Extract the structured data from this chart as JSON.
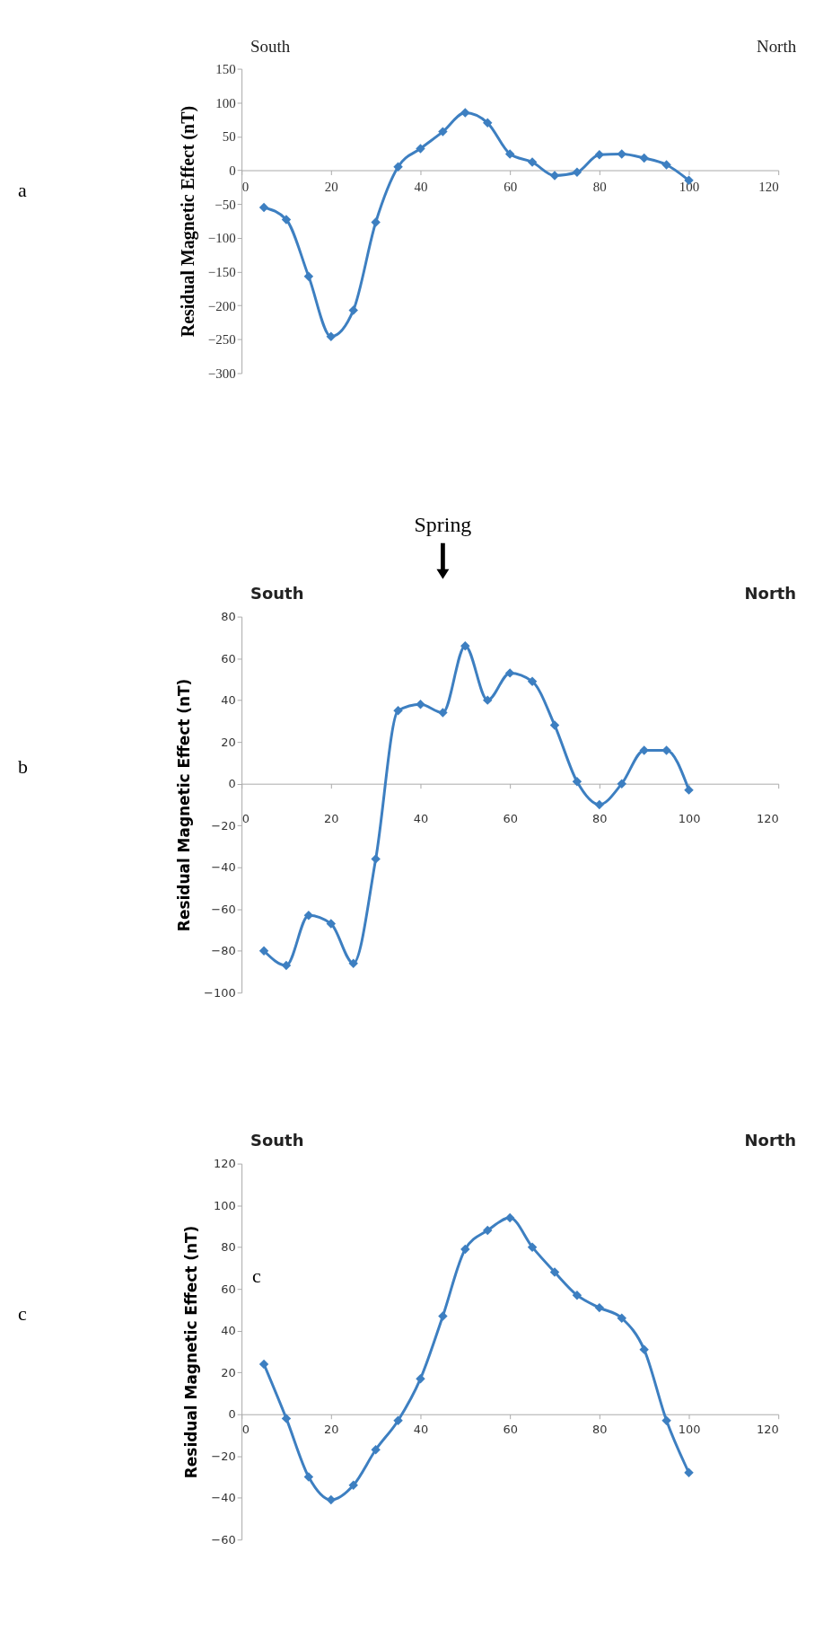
{
  "chart_data": [
    {
      "type": "line",
      "ylabel": "Residual Magnetic Effect (nT)",
      "annotations": [
        "a",
        "South",
        "North"
      ],
      "x": [
        5,
        10,
        15,
        20,
        25,
        30,
        35,
        40,
        45,
        50,
        55,
        60,
        65,
        70,
        75,
        80,
        85,
        90,
        95,
        100
      ],
      "series": [
        {
          "color": "#3d7fc1",
          "values": [
            -55,
            -73,
            -157,
            -246,
            -207,
            -77,
            5,
            32,
            57,
            85,
            70,
            24,
            12,
            -8,
            -3,
            23,
            24,
            18,
            8,
            -15
          ]
        }
      ],
      "xlim": [
        0,
        120
      ],
      "xticks": [
        0,
        20,
        40,
        60,
        80,
        100,
        120
      ],
      "ylim": [
        -300,
        150
      ],
      "yticks": [
        -300,
        -250,
        -200,
        -150,
        -100,
        -50,
        0,
        50,
        100,
        150
      ],
      "grid": false,
      "marker": "diamond",
      "line_style": "solid"
    },
    {
      "type": "line",
      "ylabel": "Residual Magnetic Effect (nT)",
      "annotations": [
        "b",
        "South",
        "North",
        "Spring"
      ],
      "x": [
        5,
        10,
        15,
        20,
        25,
        30,
        35,
        40,
        45,
        50,
        55,
        60,
        65,
        70,
        75,
        80,
        85,
        90,
        95,
        100
      ],
      "series": [
        {
          "color": "#3d7fc1",
          "values": [
            -80,
            -87,
            -63,
            -67,
            -86,
            -36,
            35,
            38,
            34,
            66,
            40,
            53,
            49,
            28,
            1,
            -10,
            0,
            16,
            16,
            -3
          ]
        }
      ],
      "xlim": [
        0,
        120
      ],
      "xticks": [
        0,
        20,
        40,
        60,
        80,
        100,
        120
      ],
      "ylim": [
        -100,
        80
      ],
      "yticks": [
        -100,
        -80,
        -60,
        -40,
        -20,
        0,
        20,
        40,
        60,
        80
      ],
      "grid": false,
      "marker": "diamond",
      "line_style": "solid"
    },
    {
      "type": "line",
      "ylabel": "Residual Magnetic Effect (nT)",
      "annotations": [
        "c",
        "South",
        "North",
        "c"
      ],
      "x": [
        5,
        10,
        15,
        20,
        25,
        30,
        35,
        40,
        45,
        50,
        55,
        60,
        65,
        70,
        75,
        80,
        85,
        90,
        95,
        100
      ],
      "series": [
        {
          "color": "#3d7fc1",
          "values": [
            24,
            -2,
            -30,
            -41,
            -34,
            -17,
            -3,
            17,
            47,
            79,
            88,
            94,
            80,
            68,
            57,
            51,
            46,
            31,
            -3,
            -28
          ]
        }
      ],
      "xlim": [
        0,
        120
      ],
      "xticks": [
        0,
        20,
        40,
        60,
        80,
        100,
        120
      ],
      "ylim": [
        -60,
        120
      ],
      "yticks": [
        -60,
        -40,
        -20,
        0,
        20,
        40,
        60,
        80,
        100,
        120
      ],
      "grid": false,
      "marker": "diamond",
      "line_style": "solid"
    }
  ]
}
